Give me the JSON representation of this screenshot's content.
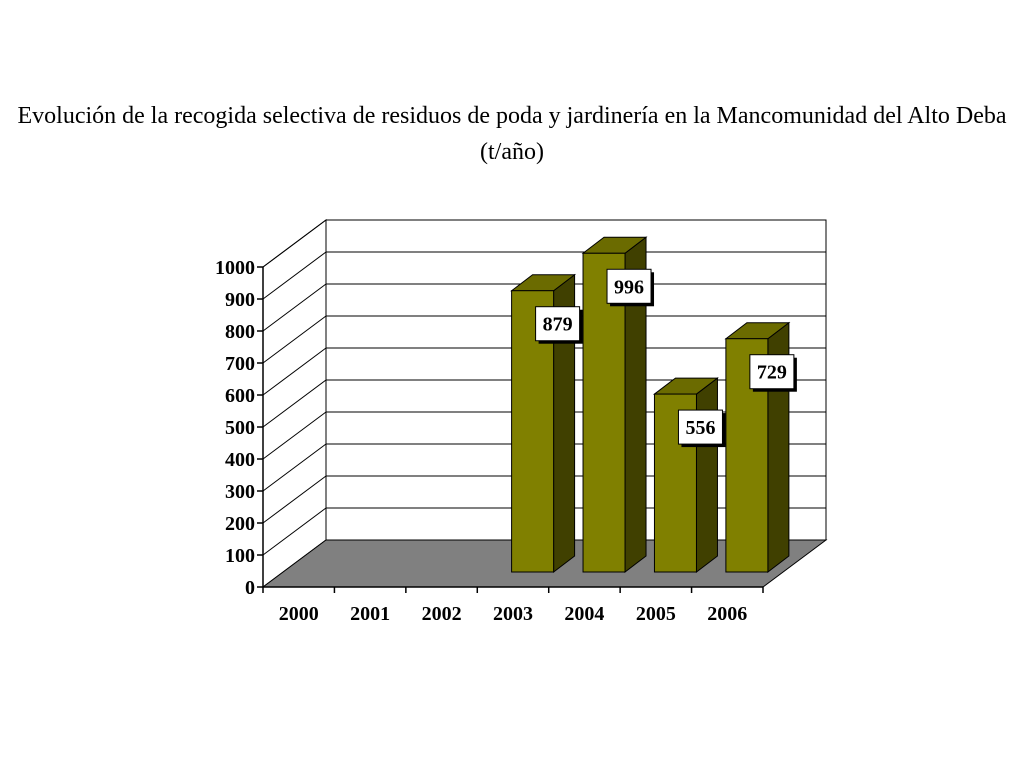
{
  "chart_data": {
    "type": "bar",
    "title": "Evolución de la recogida selectiva de residuos de poda y jardinería en la Mancomunidad del Alto Deba (t/año)",
    "categories": [
      "2000",
      "2001",
      "2002",
      "2003",
      "2004",
      "2005",
      "2006"
    ],
    "values": [
      null,
      null,
      null,
      879,
      996,
      556,
      729
    ],
    "data_labels": [
      "",
      "",
      "",
      "879",
      "996",
      "556",
      "729"
    ],
    "ylim": [
      0,
      1000
    ],
    "yticks": [
      0,
      100,
      200,
      300,
      400,
      500,
      600,
      700,
      800,
      900,
      1000
    ],
    "ytick_labels": [
      "0",
      "100",
      "200",
      "300",
      "400",
      "500",
      "600",
      "700",
      "800",
      "900",
      "1000"
    ],
    "xlabel": "",
    "ylabel": "",
    "grid": true,
    "three_d": true,
    "colors": {
      "bar_front": "#808000",
      "bar_side": "#404000",
      "bar_top": "#6b6b00",
      "floor": "#808080",
      "wall": "#ffffff",
      "grid": "#000000"
    }
  }
}
